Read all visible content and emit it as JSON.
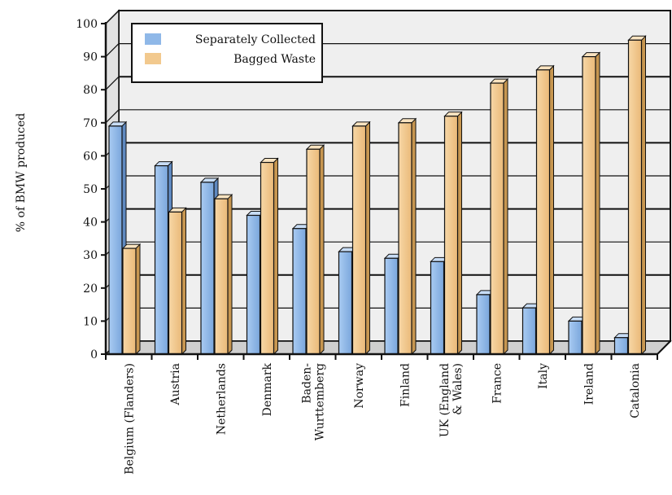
{
  "chart_data": {
    "type": "bar",
    "title": "",
    "xlabel": "",
    "ylabel": "% of BMW produced",
    "ylim": [
      0,
      100
    ],
    "yticks": [
      0,
      10,
      20,
      30,
      40,
      50,
      60,
      70,
      80,
      90,
      100
    ],
    "grid": true,
    "legend_position": "top-left",
    "categories": [
      [
        "Belgium (Flanders)"
      ],
      [
        "Austria"
      ],
      [
        "Netherlands"
      ],
      [
        "Denmark"
      ],
      [
        "Baden-",
        "Wurttemberg"
      ],
      [
        "Norway"
      ],
      [
        "Finland"
      ],
      [
        "UK (England",
        "& Wales)"
      ],
      [
        "France"
      ],
      [
        "Italy"
      ],
      [
        "Ireland"
      ],
      [
        "Catalonia"
      ]
    ],
    "series": [
      {
        "name": "Separately Collected",
        "color": "#8fb8e8",
        "values": [
          69,
          57,
          52,
          42,
          38,
          31,
          29,
          28,
          18,
          14,
          10,
          5
        ]
      },
      {
        "name": "Bagged Waste",
        "color": "#f2c98e",
        "values": [
          32,
          43,
          47,
          58,
          62,
          69,
          70,
          72,
          82,
          86,
          90,
          95
        ]
      }
    ]
  }
}
